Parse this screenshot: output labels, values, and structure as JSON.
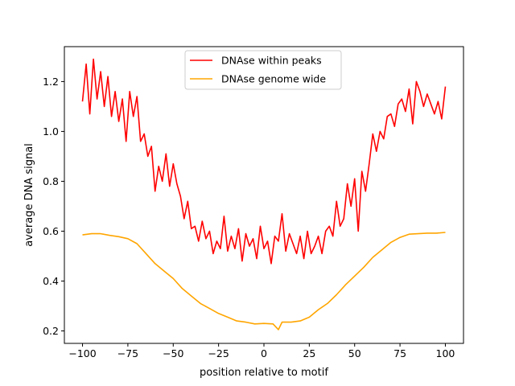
{
  "chart_data": {
    "type": "line",
    "title": "",
    "xlabel": "position relative to motif",
    "ylabel": "average DNA signal",
    "xlim": [
      -110,
      110
    ],
    "ylim": [
      0.15,
      1.34
    ],
    "xticks": [
      -100,
      -75,
      -50,
      -25,
      0,
      25,
      50,
      75,
      100
    ],
    "xtick_labels": [
      "−100",
      "−75",
      "−50",
      "−25",
      "0",
      "25",
      "50",
      "75",
      "100"
    ],
    "yticks": [
      0.2,
      0.4,
      0.6,
      0.8,
      1.0,
      1.2
    ],
    "ytick_labels": [
      "0.2",
      "0.4",
      "0.6",
      "0.8",
      "1.0",
      "1.2"
    ],
    "legend_position": "upper-center",
    "series": [
      {
        "name": "DNAse within peaks",
        "color": "#ff0000",
        "x": [
          -100,
          -98,
          -96,
          -94,
          -92,
          -90,
          -88,
          -86,
          -84,
          -82,
          -80,
          -78,
          -76,
          -74,
          -72,
          -70,
          -68,
          -66,
          -64,
          -62,
          -60,
          -58,
          -56,
          -54,
          -52,
          -50,
          -48,
          -46,
          -44,
          -42,
          -40,
          -38,
          -36,
          -34,
          -32,
          -30,
          -28,
          -26,
          -24,
          -22,
          -20,
          -18,
          -16,
          -14,
          -12,
          -10,
          -8,
          -6,
          -4,
          -2,
          0,
          2,
          4,
          6,
          8,
          10,
          12,
          14,
          16,
          18,
          20,
          22,
          24,
          26,
          28,
          30,
          32,
          34,
          36,
          38,
          40,
          42,
          44,
          46,
          48,
          50,
          52,
          54,
          56,
          58,
          60,
          62,
          64,
          66,
          68,
          70,
          72,
          74,
          76,
          78,
          80,
          82,
          84,
          86,
          88,
          90,
          92,
          94,
          96,
          98,
          100
        ],
        "values": [
          1.12,
          1.27,
          1.07,
          1.29,
          1.13,
          1.24,
          1.1,
          1.22,
          1.06,
          1.16,
          1.04,
          1.13,
          0.96,
          1.16,
          1.06,
          1.14,
          0.96,
          0.99,
          0.9,
          0.94,
          0.76,
          0.86,
          0.8,
          0.91,
          0.78,
          0.87,
          0.79,
          0.74,
          0.65,
          0.72,
          0.61,
          0.62,
          0.56,
          0.64,
          0.57,
          0.6,
          0.51,
          0.56,
          0.53,
          0.66,
          0.52,
          0.58,
          0.53,
          0.61,
          0.48,
          0.59,
          0.54,
          0.57,
          0.49,
          0.62,
          0.53,
          0.56,
          0.47,
          0.58,
          0.56,
          0.67,
          0.52,
          0.59,
          0.55,
          0.51,
          0.58,
          0.49,
          0.6,
          0.51,
          0.54,
          0.58,
          0.51,
          0.6,
          0.62,
          0.58,
          0.72,
          0.62,
          0.65,
          0.79,
          0.7,
          0.81,
          0.6,
          0.84,
          0.76,
          0.87,
          0.99,
          0.92,
          1.0,
          0.97,
          1.06,
          1.07,
          1.02,
          1.11,
          1.13,
          1.08,
          1.17,
          1.03,
          1.2,
          1.16,
          1.1,
          1.15,
          1.11,
          1.07,
          1.12,
          1.05,
          1.18
        ]
      },
      {
        "name": "DNAse genome wide",
        "color": "#ffa500",
        "x": [
          -100,
          -95,
          -90,
          -85,
          -80,
          -75,
          -70,
          -65,
          -60,
          -55,
          -50,
          -45,
          -40,
          -35,
          -30,
          -25,
          -20,
          -15,
          -10,
          -5,
          0,
          5,
          8,
          10,
          15,
          20,
          25,
          30,
          35,
          40,
          45,
          50,
          55,
          60,
          65,
          70,
          75,
          80,
          85,
          90,
          95,
          100
        ],
        "values": [
          0.585,
          0.59,
          0.59,
          0.583,
          0.578,
          0.57,
          0.55,
          0.51,
          0.47,
          0.44,
          0.41,
          0.37,
          0.34,
          0.31,
          0.29,
          0.27,
          0.255,
          0.24,
          0.235,
          0.228,
          0.23,
          0.228,
          0.205,
          0.235,
          0.235,
          0.24,
          0.255,
          0.285,
          0.31,
          0.345,
          0.385,
          0.42,
          0.455,
          0.495,
          0.525,
          0.555,
          0.575,
          0.588,
          0.59,
          0.592,
          0.592,
          0.595
        ]
      }
    ]
  }
}
